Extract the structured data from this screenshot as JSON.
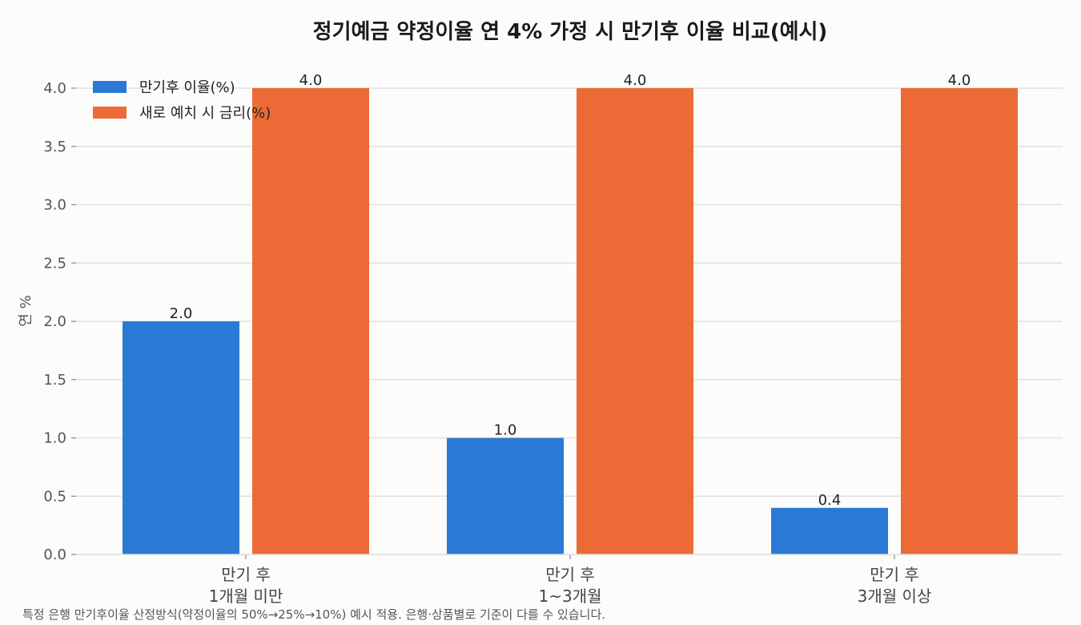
{
  "chart_data": {
    "type": "bar",
    "title": "정기예금 약정이율 연 4% 가정 시 만기후 이율 비교(예시)",
    "ylabel": "연 %",
    "xlabel": "",
    "categories": [
      [
        "만기 후",
        "1개월 미만"
      ],
      [
        "만기 후",
        "1~3개월"
      ],
      [
        "만기 후",
        "3개월 이상"
      ]
    ],
    "series": [
      {
        "name": "만기후 이율(%)",
        "values": [
          2.0,
          1.0,
          0.4
        ],
        "color": "#2a7ad5",
        "labels": [
          "2.0",
          "1.0",
          "0.4"
        ]
      },
      {
        "name": "새로 예치 시 금리(%)",
        "values": [
          4.0,
          4.0,
          4.0
        ],
        "color": "#ec6a36",
        "labels": [
          "4.0",
          "4.0",
          "4.0"
        ]
      }
    ],
    "ylim": [
      0,
      4.0
    ],
    "yticks": [
      "0.0",
      "0.5",
      "1.0",
      "1.5",
      "2.0",
      "2.5",
      "3.0",
      "3.5",
      "4.0"
    ],
    "grid": true,
    "legend_position": "top-left"
  },
  "footnote": "특정 은행 만기후이율 산정방식(약정이율의 50%→25%→10%) 예시 적용. 은행·상품별로 기준이 다를 수 있습니다."
}
